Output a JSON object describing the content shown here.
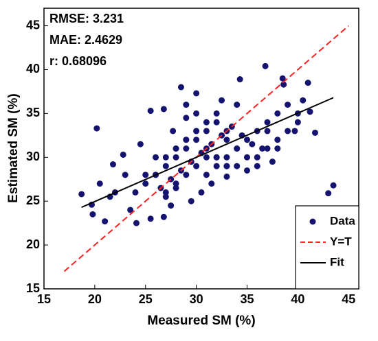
{
  "chart_data": {
    "type": "scatter",
    "xlabel": "Measured SM (%)",
    "ylabel": "Estimated SM (%)",
    "xlim": [
      15,
      46
    ],
    "ylim": [
      15,
      47
    ],
    "xticks": [
      15,
      20,
      25,
      30,
      35,
      40,
      45
    ],
    "yticks": [
      15,
      20,
      25,
      30,
      35,
      40,
      45
    ],
    "annotations": [
      "RMSE: 3.231",
      "MAE: 2.4629",
      "r: 0.68096"
    ],
    "legend": "lower right",
    "series": [
      {
        "name": "Data",
        "color": "#141470",
        "style": "markers",
        "x": [
          20.2,
          43.5,
          43,
          36.8,
          38.5,
          38.6,
          41,
          34.3,
          28.5,
          18.7,
          19.7,
          21,
          24.1,
          41.7,
          41.2,
          25.5,
          26.8,
          40.5,
          39.7,
          37.5,
          38,
          22.8,
          21.8,
          25.5,
          26.8,
          23.5,
          27.5,
          29.5,
          30.5,
          31.5,
          33,
          35,
          36.5,
          34,
          32.5,
          30,
          29,
          27.7,
          24.5,
          23,
          22,
          21.5,
          20.5,
          19.8,
          26,
          27,
          28,
          29,
          30,
          31,
          32,
          33,
          34,
          35,
          36,
          37,
          26.5,
          27.5,
          28.5,
          29.5,
          30.5,
          31.5,
          32.5,
          33.5,
          34.5,
          35.5,
          28,
          29,
          30,
          31,
          32,
          33,
          34,
          27,
          28,
          29,
          30,
          31,
          32,
          33,
          25,
          26,
          27,
          28,
          29,
          30,
          31,
          24,
          25,
          26,
          27,
          28,
          32,
          33,
          34,
          35,
          36,
          37,
          38,
          39,
          40,
          36,
          37,
          38,
          39,
          40,
          31,
          32,
          33,
          30,
          29
        ],
        "y": [
          33.3,
          26.8,
          25.9,
          40.4,
          39,
          38.3,
          38.5,
          38.9,
          38,
          25.8,
          24.6,
          22.7,
          22.5,
          32.8,
          35.2,
          35.3,
          35.5,
          36.5,
          33,
          29.5,
          31,
          30.3,
          29.2,
          23,
          23.2,
          24,
          24.5,
          25,
          26,
          27,
          27.8,
          28.5,
          31,
          36,
          36.5,
          37.3,
          34.5,
          33,
          31.5,
          28,
          26,
          25.5,
          27,
          23.5,
          28,
          29,
          30,
          31,
          32,
          33,
          34,
          32,
          31,
          30,
          29,
          33,
          26.5,
          27.5,
          28.5,
          29.5,
          30.5,
          31.5,
          32.5,
          33.5,
          32.5,
          31.5,
          31,
          32,
          33,
          34,
          35,
          30,
          29,
          30,
          31,
          32,
          33,
          31,
          30,
          29,
          27,
          28,
          26,
          27,
          28,
          29,
          30,
          26,
          28,
          30,
          25.5,
          26.5,
          30,
          29,
          31,
          32,
          33,
          34,
          35,
          36,
          34,
          30,
          31,
          32,
          33,
          35,
          28,
          29,
          33,
          35,
          36
        ]
      },
      {
        "name": "Y=T",
        "color": "#ff2020",
        "style": "dashed",
        "x": [
          17,
          45
        ],
        "y": [
          17,
          45
        ]
      },
      {
        "name": "Fit",
        "color": "#000000",
        "style": "solid",
        "x": [
          18.7,
          43.5
        ],
        "y": [
          24.3,
          36.8
        ]
      }
    ]
  }
}
